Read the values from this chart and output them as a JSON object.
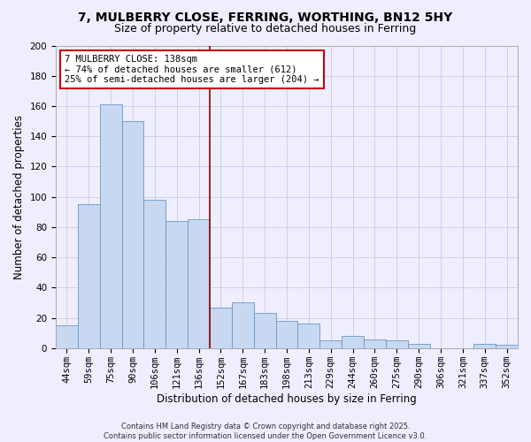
{
  "title": "7, MULBERRY CLOSE, FERRING, WORTHING, BN12 5HY",
  "subtitle": "Size of property relative to detached houses in Ferring",
  "xlabel": "Distribution of detached houses by size in Ferring",
  "ylabel": "Number of detached properties",
  "categories": [
    "44sqm",
    "59sqm",
    "75sqm",
    "90sqm",
    "106sqm",
    "121sqm",
    "136sqm",
    "152sqm",
    "167sqm",
    "183sqm",
    "198sqm",
    "213sqm",
    "229sqm",
    "244sqm",
    "260sqm",
    "275sqm",
    "290sqm",
    "306sqm",
    "321sqm",
    "337sqm",
    "352sqm"
  ],
  "values": [
    15,
    95,
    161,
    150,
    98,
    84,
    85,
    27,
    30,
    23,
    18,
    16,
    5,
    8,
    6,
    5,
    3,
    0,
    0,
    3,
    2
  ],
  "bar_color": "#c8d8f0",
  "bar_edge_color": "#6699cc",
  "highlight_bar_index": 6,
  "highlight_line_color": "#8b0000",
  "ylim": [
    0,
    200
  ],
  "yticks": [
    0,
    20,
    40,
    60,
    80,
    100,
    120,
    140,
    160,
    180,
    200
  ],
  "annotation_box_text": "7 MULBERRY CLOSE: 138sqm\n← 74% of detached houses are smaller (612)\n25% of semi-detached houses are larger (204) →",
  "annotation_box_edgecolor": "#cc0000",
  "annotation_box_facecolor": "#ffffff",
  "footer_line1": "Contains HM Land Registry data © Crown copyright and database right 2025.",
  "footer_line2": "Contains public sector information licensed under the Open Government Licence v3.0.",
  "background_color": "#eeeeff",
  "grid_color": "#ccccdd",
  "title_fontsize": 10,
  "subtitle_fontsize": 9,
  "axis_label_fontsize": 8.5,
  "tick_fontsize": 7.5,
  "annotation_fontsize": 7.5,
  "footer_fontsize": 6
}
